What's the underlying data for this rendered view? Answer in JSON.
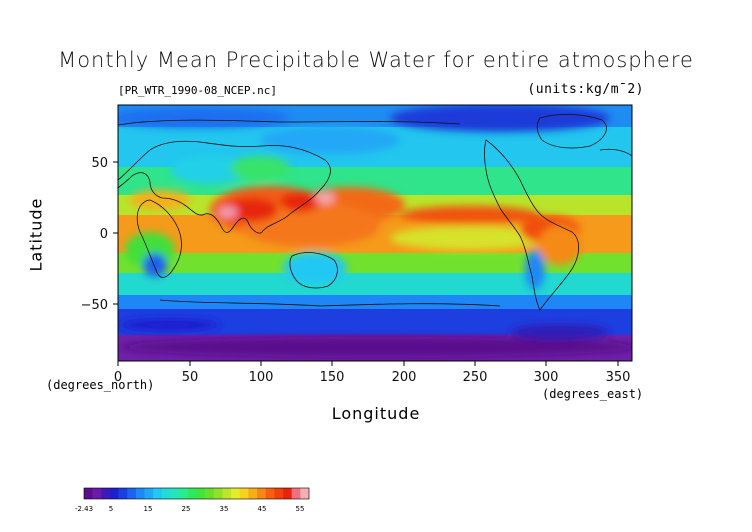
{
  "map": {
    "title": "Monthly Mean Precipitable Water for entire atmosphere",
    "file_label": "[PR_WTR_1990-08_NCEP.nc]",
    "units_label": "(units:kg/m¯2)",
    "xlabel": "Longitude",
    "ylabel": "Latitude",
    "x_unit": "(degrees_east)",
    "y_unit": "(degrees_north)",
    "xlim": [
      0,
      360
    ],
    "ylim": [
      -90,
      90
    ],
    "x_ticks": [
      "0",
      "50",
      "100",
      "150",
      "200",
      "250",
      "300",
      "350"
    ],
    "y_ticks": [
      "50",
      "0",
      "−50"
    ]
  },
  "colorbar": {
    "labels": [
      "-2.43",
      "5",
      "15",
      "25",
      "35",
      "45",
      "55"
    ],
    "colors": [
      "#5b0f8c",
      "#6a1aa8",
      "#3c1ab8",
      "#1f1fd0",
      "#1840e0",
      "#1f62f0",
      "#1e88f7",
      "#20a8f8",
      "#22c8f4",
      "#21dcd8",
      "#23e6b8",
      "#27ec8d",
      "#2ee85e",
      "#42e33a",
      "#67e02c",
      "#93e02a",
      "#bde62b",
      "#e4ec2c",
      "#f5d21e",
      "#f7ae18",
      "#f68714",
      "#f46010",
      "#f0400e",
      "#e8240e",
      "#f07080",
      "#f2b0b4"
    ]
  }
}
